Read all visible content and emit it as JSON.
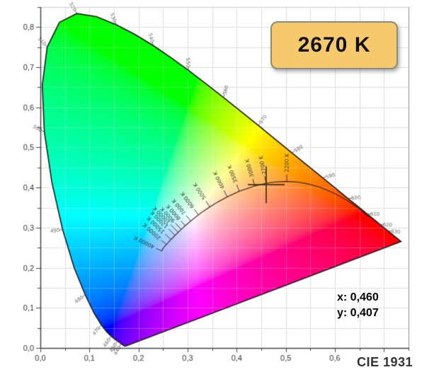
{
  "badge": {
    "label": "2670 K",
    "fill": "#f6ca6c",
    "border": "#8b8b7f",
    "text_color": "#111111"
  },
  "readout": {
    "x_label": "x: 0,460",
    "y_label": "y: 0,407"
  },
  "footer": {
    "label": "CIE 1931"
  },
  "chart_data": {
    "type": "scatter",
    "title": "CIE 1931 chromaticity diagram with Planckian locus and measured color point",
    "measured_point": {
      "x": 0.46,
      "y": 0.407,
      "cct_label": "2670 K"
    },
    "x_axis": {
      "min": 0,
      "max": 0.75,
      "grid_step": 0.05,
      "ticks": [
        {
          "v": 0.0,
          "label": "0,0"
        },
        {
          "v": 0.1,
          "label": "0,1"
        },
        {
          "v": 0.2,
          "label": "0,2"
        },
        {
          "v": 0.3,
          "label": "0,3"
        },
        {
          "v": 0.4,
          "label": "0,4"
        },
        {
          "v": 0.5,
          "label": "0,5"
        },
        {
          "v": 0.6,
          "label": "0,6"
        }
      ]
    },
    "y_axis": {
      "min": 0,
      "max": 0.85,
      "grid_step": 0.05,
      "ticks": [
        {
          "v": 0.0,
          "label": "0,0"
        },
        {
          "v": 0.1,
          "label": "0,1"
        },
        {
          "v": 0.2,
          "label": "0,2"
        },
        {
          "v": 0.3,
          "label": "0,3"
        },
        {
          "v": 0.4,
          "label": "0,4"
        },
        {
          "v": 0.5,
          "label": "0,5"
        },
        {
          "v": 0.6,
          "label": "0,6"
        },
        {
          "v": 0.7,
          "label": "0,7"
        },
        {
          "v": 0.8,
          "label": "0,8"
        }
      ]
    },
    "spectral_locus": [
      [
        380,
        0.1741,
        0.005
      ],
      [
        385,
        0.174,
        0.005
      ],
      [
        390,
        0.1738,
        0.0049
      ],
      [
        395,
        0.1736,
        0.0049
      ],
      [
        400,
        0.1733,
        0.0048
      ],
      [
        405,
        0.173,
        0.0048
      ],
      [
        410,
        0.1726,
        0.0048
      ],
      [
        415,
        0.1721,
        0.0048
      ],
      [
        420,
        0.1714,
        0.0051
      ],
      [
        425,
        0.1703,
        0.0058
      ],
      [
        430,
        0.1689,
        0.0069
      ],
      [
        435,
        0.1669,
        0.0086
      ],
      [
        440,
        0.1644,
        0.0109
      ],
      [
        445,
        0.1611,
        0.0138
      ],
      [
        450,
        0.1566,
        0.0177
      ],
      [
        455,
        0.151,
        0.0227
      ],
      [
        460,
        0.144,
        0.0297
      ],
      [
        465,
        0.1355,
        0.0399
      ],
      [
        470,
        0.1241,
        0.0578
      ],
      [
        475,
        0.1096,
        0.0868
      ],
      [
        480,
        0.0913,
        0.1327
      ],
      [
        485,
        0.0687,
        0.2007
      ],
      [
        490,
        0.0454,
        0.295
      ],
      [
        495,
        0.0235,
        0.4127
      ],
      [
        500,
        0.0082,
        0.5384
      ],
      [
        505,
        0.0039,
        0.6548
      ],
      [
        510,
        0.0139,
        0.7502
      ],
      [
        515,
        0.0389,
        0.812
      ],
      [
        520,
        0.0743,
        0.8338
      ],
      [
        525,
        0.1142,
        0.8262
      ],
      [
        530,
        0.1547,
        0.8059
      ],
      [
        535,
        0.1929,
        0.7816
      ],
      [
        540,
        0.2296,
        0.7543
      ],
      [
        545,
        0.2658,
        0.7243
      ],
      [
        550,
        0.3016,
        0.6923
      ],
      [
        555,
        0.3373,
        0.6589
      ],
      [
        560,
        0.3731,
        0.6245
      ],
      [
        565,
        0.4087,
        0.5896
      ],
      [
        570,
        0.4441,
        0.5547
      ],
      [
        575,
        0.4788,
        0.5202
      ],
      [
        580,
        0.5125,
        0.4866
      ],
      [
        585,
        0.5448,
        0.4544
      ],
      [
        590,
        0.5752,
        0.4242
      ],
      [
        595,
        0.6029,
        0.3965
      ],
      [
        600,
        0.627,
        0.3725
      ],
      [
        605,
        0.6482,
        0.3514
      ],
      [
        610,
        0.6658,
        0.334
      ],
      [
        615,
        0.6801,
        0.3197
      ],
      [
        620,
        0.6915,
        0.3083
      ],
      [
        625,
        0.7006,
        0.2993
      ],
      [
        630,
        0.7079,
        0.292
      ],
      [
        635,
        0.714,
        0.2859
      ],
      [
        640,
        0.719,
        0.2809
      ],
      [
        645,
        0.723,
        0.277
      ],
      [
        650,
        0.726,
        0.274
      ],
      [
        660,
        0.73,
        0.27
      ],
      [
        670,
        0.732,
        0.268
      ],
      [
        680,
        0.7334,
        0.2666
      ],
      [
        700,
        0.7347,
        0.2653
      ]
    ],
    "wavelength_tick_labels": [
      "440",
      "450",
      "460",
      "470",
      "480",
      "490",
      "500",
      "510",
      "520",
      "530",
      "540",
      "550",
      "560",
      "570",
      "580",
      "590",
      "600",
      "610",
      "620",
      "630"
    ],
    "planckian_locus": [
      [
        900,
        0.6693,
        0.3269
      ],
      [
        1000,
        0.6528,
        0.3445
      ],
      [
        1200,
        0.625,
        0.3676
      ],
      [
        1400,
        0.5985,
        0.3858
      ],
      [
        1600,
        0.5732,
        0.3993
      ],
      [
        1800,
        0.5493,
        0.4082
      ],
      [
        2000,
        0.5267,
        0.4133
      ],
      [
        2200,
        0.5018,
        0.4153
      ],
      [
        2500,
        0.477,
        0.4137
      ],
      [
        2700,
        0.4599,
        0.4106
      ],
      [
        3000,
        0.4369,
        0.4041
      ],
      [
        3500,
        0.4053,
        0.3907
      ],
      [
        4000,
        0.3805,
        0.3768
      ],
      [
        4500,
        0.3608,
        0.3636
      ],
      [
        5000,
        0.3451,
        0.3516
      ],
      [
        5500,
        0.3325,
        0.3411
      ],
      [
        6000,
        0.3221,
        0.3318
      ],
      [
        6500,
        0.3135,
        0.3237
      ],
      [
        7000,
        0.3064,
        0.3166
      ],
      [
        7500,
        0.3004,
        0.3103
      ],
      [
        8000,
        0.2952,
        0.3048
      ],
      [
        9000,
        0.2869,
        0.2956
      ],
      [
        10000,
        0.2807,
        0.2884
      ],
      [
        12000,
        0.2744,
        0.2807
      ],
      [
        15000,
        0.266,
        0.2704
      ],
      [
        20000,
        0.2565,
        0.2577
      ],
      [
        30000,
        0.2501,
        0.2489
      ],
      [
        40000,
        0.2472,
        0.2418
      ]
    ],
    "temperature_ticks": [
      {
        "T": 2200,
        "label": "2200 K",
        "len": 10
      },
      {
        "T": 2700,
        "label": "2700 K",
        "len": 10
      },
      {
        "T": 3000,
        "label": "3000 K",
        "len": 10
      },
      {
        "T": 3500,
        "label": "3500 K",
        "len": 10
      },
      {
        "T": 4000,
        "label": "4000 K",
        "len": 10
      },
      {
        "T": 5000,
        "label": "5000 K",
        "len": 10
      },
      {
        "T": 6000,
        "label": "6000 K",
        "len": 10
      },
      {
        "T": 7000,
        "label": "7000 K",
        "len": 10
      },
      {
        "T": 8000,
        "label": "8000 K",
        "len": 9
      },
      {
        "T": 9000,
        "label": "9000 K",
        "len": 12
      },
      {
        "T": 10000,
        "label": "10000 K",
        "len": 15
      },
      {
        "T": 12000,
        "label": "12000 K",
        "len": 13
      },
      {
        "T": 15000,
        "label": "15000 K",
        "len": 11
      },
      {
        "T": 20000,
        "label": "20000 K",
        "len": 9
      },
      {
        "T": 40000,
        "label": "40000 K",
        "len": 9
      }
    ],
    "colors": {
      "background": "#ffffff",
      "grid": "#dedede",
      "grid_over_color": "rgba(255,255,255,0.25)",
      "axis": "#444444",
      "right_border": "#8a8a8a",
      "top_border": "#cccccc",
      "locus_outline": "#1c1c1c",
      "planckian": "rgba(40,32,22,0.85)",
      "axis_text": "#333333",
      "wavelength_text": "#666666",
      "crosshair": "rgba(45,35,20,0.9)"
    },
    "legend": "none",
    "grid": true
  }
}
